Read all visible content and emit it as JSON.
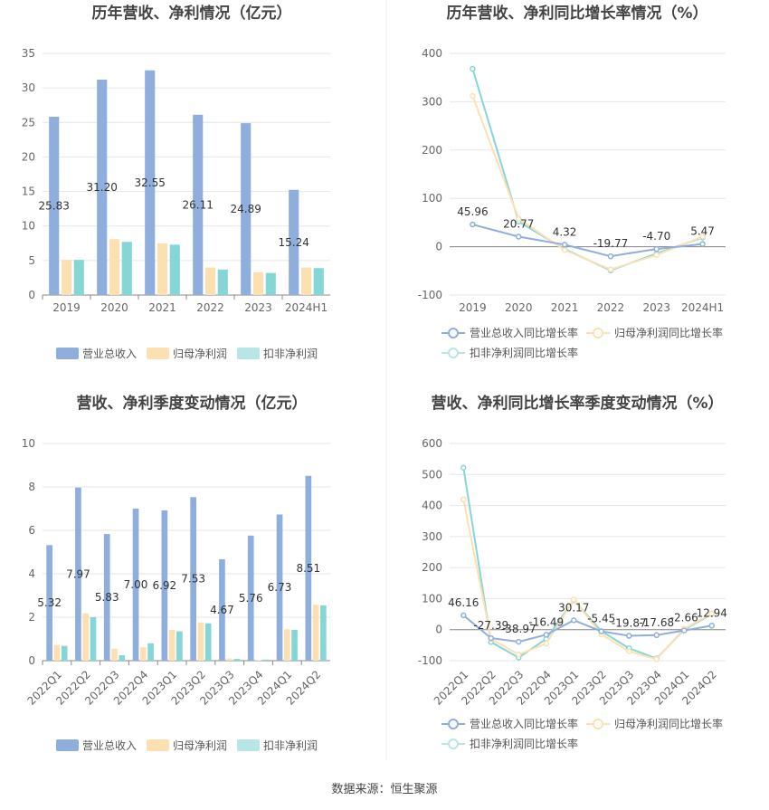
{
  "colors": {
    "revenue": "#8faedc",
    "parent_np": "#fde0b2",
    "deducted_np": "#87d6d6",
    "grid": "#e6e6e6",
    "axis": "#888888",
    "text": "#666666",
    "title": "#444444"
  },
  "charts": [
    {
      "title": "历年营收、净利情况（亿元）",
      "legend": [
        "营业总收入",
        "归母净利润",
        "扣非净利润"
      ]
    },
    {
      "title": "历年营收、净利同比增长率情况（%）",
      "legend": [
        "营业总收入同比增长率",
        "归母净利润同比增长率",
        "扣非净利润同比增长率"
      ]
    },
    {
      "title": "营收、净利季度变动情况（亿元）",
      "legend": [
        "营业总收入",
        "归母净利润",
        "扣非净利润"
      ]
    },
    {
      "title": "营收、净利同比增长率季度变动情况（%）",
      "legend": [
        "营业总收入同比增长率",
        "归母净利润同比增长率",
        "扣非净利润同比增长率"
      ]
    }
  ],
  "footer": "数据来源：恒生聚源",
  "chart_data": [
    {
      "type": "bar",
      "title": "历年营收、净利情况（亿元）",
      "categories": [
        "2019",
        "2020",
        "2021",
        "2022",
        "2023",
        "2024H1"
      ],
      "ylim": [
        0,
        35
      ],
      "yticks": [
        0,
        5,
        10,
        15,
        20,
        25,
        30,
        35
      ],
      "series": [
        {
          "name": "营业总收入",
          "values": [
            25.83,
            31.2,
            32.55,
            26.11,
            24.89,
            15.24
          ],
          "labels": [
            "25.83",
            "31.20",
            "32.55",
            "26.11",
            "24.89",
            "15.24"
          ]
        },
        {
          "name": "归母净利润",
          "values": [
            5.1,
            8.1,
            7.5,
            4.0,
            3.3,
            4.0
          ]
        },
        {
          "name": "扣非净利润",
          "values": [
            5.1,
            7.7,
            7.3,
            3.7,
            3.2,
            3.9
          ]
        }
      ],
      "legend": "bottom",
      "grid": true
    },
    {
      "type": "line",
      "title": "历年营收、净利同比增长率情况（%）",
      "categories": [
        "2019",
        "2020",
        "2021",
        "2022",
        "2023",
        "2024H1"
      ],
      "ylim": [
        -100,
        400
      ],
      "yticks": [
        -100,
        0,
        100,
        200,
        300,
        400
      ],
      "series": [
        {
          "name": "营业总收入同比增长率",
          "values": [
            45.96,
            20.77,
            4.32,
            -19.77,
            -4.7,
            5.47
          ],
          "labels": [
            "45.96",
            "20.77",
            "4.32",
            "-19.77",
            "-4.70",
            "5.47"
          ]
        },
        {
          "name": "归母净利润同比增长率",
          "values": [
            312,
            58,
            -7,
            -47,
            -17,
            21
          ]
        },
        {
          "name": "扣非净利润同比增长率",
          "values": [
            368,
            52,
            -5,
            -49,
            -14,
            19
          ]
        }
      ],
      "legend": "bottom",
      "grid": true
    },
    {
      "type": "bar",
      "title": "营收、净利季度变动情况（亿元）",
      "categories": [
        "2022Q1",
        "2022Q2",
        "2022Q3",
        "2022Q4",
        "2023Q1",
        "2023Q2",
        "2023Q3",
        "2023Q4",
        "2024Q1",
        "2024Q2"
      ],
      "ylim": [
        0,
        10
      ],
      "yticks": [
        0,
        2,
        4,
        6,
        8,
        10
      ],
      "series": [
        {
          "name": "营业总收入",
          "values": [
            5.32,
            7.97,
            5.83,
            7.0,
            6.92,
            7.53,
            4.67,
            5.76,
            6.73,
            8.51
          ],
          "labels": [
            "5.32",
            "7.97",
            "5.83",
            "7.00",
            "6.92",
            "7.53",
            "4.67",
            "5.76",
            "6.73",
            "8.51"
          ]
        },
        {
          "name": "归母净利润",
          "values": [
            0.72,
            2.18,
            0.55,
            0.62,
            1.42,
            1.76,
            0.1,
            0.02,
            1.45,
            2.57
          ]
        },
        {
          "name": "扣非净利润",
          "values": [
            0.68,
            2.0,
            0.25,
            0.8,
            1.35,
            1.72,
            0.08,
            0.05,
            1.42,
            2.55
          ]
        }
      ],
      "legend": "bottom",
      "grid": true
    },
    {
      "type": "line",
      "title": "营收、净利同比增长率季度变动情况（%）",
      "categories": [
        "2022Q1",
        "2022Q2",
        "2022Q3",
        "2022Q4",
        "2023Q1",
        "2023Q2",
        "2023Q3",
        "2023Q4",
        "2024Q1",
        "2024Q2"
      ],
      "ylim": [
        -100,
        600
      ],
      "yticks": [
        -100,
        0,
        100,
        200,
        300,
        400,
        500,
        600
      ],
      "series": [
        {
          "name": "营业总收入同比增长率",
          "values": [
            46.16,
            -27.39,
            -38.97,
            -16.49,
            30.17,
            -5.45,
            -19.87,
            -17.68,
            -2.66,
            12.94
          ],
          "labels": [
            "46.16",
            "-27.39",
            "-38.97",
            "-16.49",
            "30.17",
            "-5.45",
            "-19.87",
            "-17.68",
            "-2.66",
            "12.94"
          ]
        },
        {
          "name": "归母净利润同比增长率",
          "values": [
            420,
            -30,
            -80,
            -45,
            97,
            -15,
            -70,
            -95,
            3,
            52
          ]
        },
        {
          "name": "扣非净利润同比增长率",
          "values": [
            522,
            -40,
            -90,
            -30,
            95,
            -5,
            -60,
            -93,
            0,
            50
          ]
        }
      ],
      "legend": "bottom",
      "grid": true
    }
  ]
}
